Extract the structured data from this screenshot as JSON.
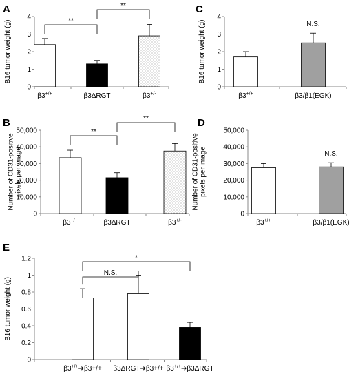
{
  "chart_data": [
    {
      "panel": "A",
      "type": "bar",
      "ylabel": "B16 tumor weight (g)",
      "ylim": [
        0,
        4
      ],
      "yticks": [
        "0",
        "1",
        "2",
        "3",
        "4"
      ],
      "categories": [
        {
          "base": "β3",
          "sup": "+/+",
          "post": ""
        },
        {
          "base": "β3ΔRGT",
          "sup": "",
          "post": ""
        },
        {
          "base": "β3",
          "sup": "+/-",
          "post": ""
        }
      ],
      "values": [
        2.4,
        1.3,
        2.9
      ],
      "errors": [
        0.35,
        0.2,
        0.65
      ],
      "fills": [
        "white",
        "black",
        "dots"
      ],
      "brackets": [
        {
          "from": 0,
          "to": 1,
          "label": "**"
        },
        {
          "from": 1,
          "to": 2,
          "label": "**"
        }
      ]
    },
    {
      "panel": "C",
      "type": "bar",
      "ylabel": "B16 tumor weight (g)",
      "ylim": [
        0,
        4
      ],
      "yticks": [
        "0",
        "1",
        "2",
        "3",
        "4"
      ],
      "categories": [
        {
          "base": "β3",
          "sup": "+/+",
          "post": ""
        },
        {
          "base": "β3/β1(EGK)",
          "sup": "",
          "post": ""
        }
      ],
      "values": [
        1.7,
        2.5
      ],
      "errors": [
        0.3,
        0.55
      ],
      "fills": [
        "white",
        "gray"
      ],
      "annotations": [
        {
          "bar": 1,
          "label": "N.S."
        }
      ]
    },
    {
      "panel": "B",
      "type": "bar",
      "ylabel": "Number of CD31-positive\npixels per image",
      "ylim": [
        0,
        50000
      ],
      "yticks": [
        "0",
        "10,000",
        "20,000",
        "30,000",
        "40,000",
        "50,000"
      ],
      "categories": [
        {
          "base": "β3",
          "sup": "+/+",
          "post": ""
        },
        {
          "base": "β3ΔRGT",
          "sup": "",
          "post": ""
        },
        {
          "base": "β3",
          "sup": "+/-",
          "post": ""
        }
      ],
      "values": [
        33500,
        21500,
        37500
      ],
      "errors": [
        4500,
        3000,
        4500
      ],
      "fills": [
        "white",
        "black",
        "dots"
      ],
      "brackets": [
        {
          "from": 0,
          "to": 1,
          "label": "**"
        },
        {
          "from": 1,
          "to": 2,
          "label": "**"
        }
      ]
    },
    {
      "panel": "D",
      "type": "bar",
      "ylabel": "Number of CD31-positive\npixels per image",
      "ylim": [
        0,
        50000
      ],
      "yticks": [
        "0",
        "10,000",
        "20,000",
        "30,000",
        "40,000",
        "50,000"
      ],
      "categories": [
        {
          "base": "β3",
          "sup": "+/+",
          "post": ""
        },
        {
          "base": "β3/β1(EGK)",
          "sup": "",
          "post": ""
        }
      ],
      "values": [
        27500,
        28000
      ],
      "errors": [
        2500,
        2500
      ],
      "fills": [
        "white",
        "gray"
      ],
      "annotations": [
        {
          "bar": 1,
          "label": "N.S."
        }
      ]
    },
    {
      "panel": "E",
      "type": "bar",
      "ylabel": "B16 tumor weight (g)",
      "ylim": [
        0,
        1.2
      ],
      "yticks": [
        "0",
        "0.2",
        "0.4",
        "0.6",
        "0.8",
        "1",
        "1.2"
      ],
      "categories": [
        {
          "base": "β3",
          "sup": "+/+",
          "post": "➔β3+/+"
        },
        {
          "base": "β3ΔRGT",
          "sup": "",
          "post": "➔β3+/+"
        },
        {
          "base": "β3",
          "sup": "+/+",
          "post": "➔β3ΔRGT"
        }
      ],
      "values": [
        0.73,
        0.78,
        0.38
      ],
      "errors": [
        0.11,
        0.22,
        0.06
      ],
      "fills": [
        "white",
        "white",
        "black"
      ],
      "brackets": [
        {
          "from": 0,
          "to": 1,
          "label": "N.S."
        },
        {
          "from": 0,
          "to": 2,
          "label": "*"
        }
      ]
    }
  ]
}
